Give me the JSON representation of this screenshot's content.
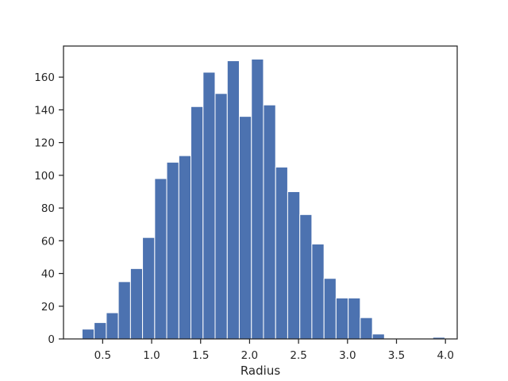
{
  "chart_data": {
    "type": "bar",
    "subtype": "histogram",
    "title": "",
    "xlabel": "Radius",
    "ylabel": "",
    "xlim": [
      0.1,
      4.12
    ],
    "ylim": [
      0,
      179
    ],
    "x_ticks": [
      0.5,
      1.0,
      1.5,
      2.0,
      2.5,
      3.0,
      3.5,
      4.0
    ],
    "x_tick_labels": [
      "0.5",
      "1.0",
      "1.5",
      "2.0",
      "2.5",
      "3.0",
      "3.5",
      "4.0"
    ],
    "y_ticks": [
      0,
      20,
      40,
      60,
      80,
      100,
      120,
      140,
      160
    ],
    "y_tick_labels": [
      "0",
      "20",
      "40",
      "60",
      "80",
      "100",
      "120",
      "140",
      "160"
    ],
    "bin_edges": [
      0.29,
      0.413,
      0.537,
      0.66,
      0.784,
      0.907,
      1.031,
      1.154,
      1.278,
      1.401,
      1.525,
      1.648,
      1.772,
      1.895,
      2.019,
      2.142,
      2.266,
      2.389,
      2.513,
      2.636,
      2.76,
      2.883,
      3.007,
      3.13,
      3.254,
      3.377,
      3.501,
      3.624,
      3.748,
      3.871,
      3.995
    ],
    "values": [
      6,
      10,
      16,
      35,
      43,
      62,
      98,
      108,
      112,
      142,
      163,
      150,
      170,
      136,
      171,
      143,
      105,
      90,
      76,
      58,
      37,
      25,
      25,
      13,
      3,
      0,
      0,
      0,
      0,
      1
    ],
    "bar_color": "#4c72b0",
    "grid": false,
    "legend": "none"
  }
}
